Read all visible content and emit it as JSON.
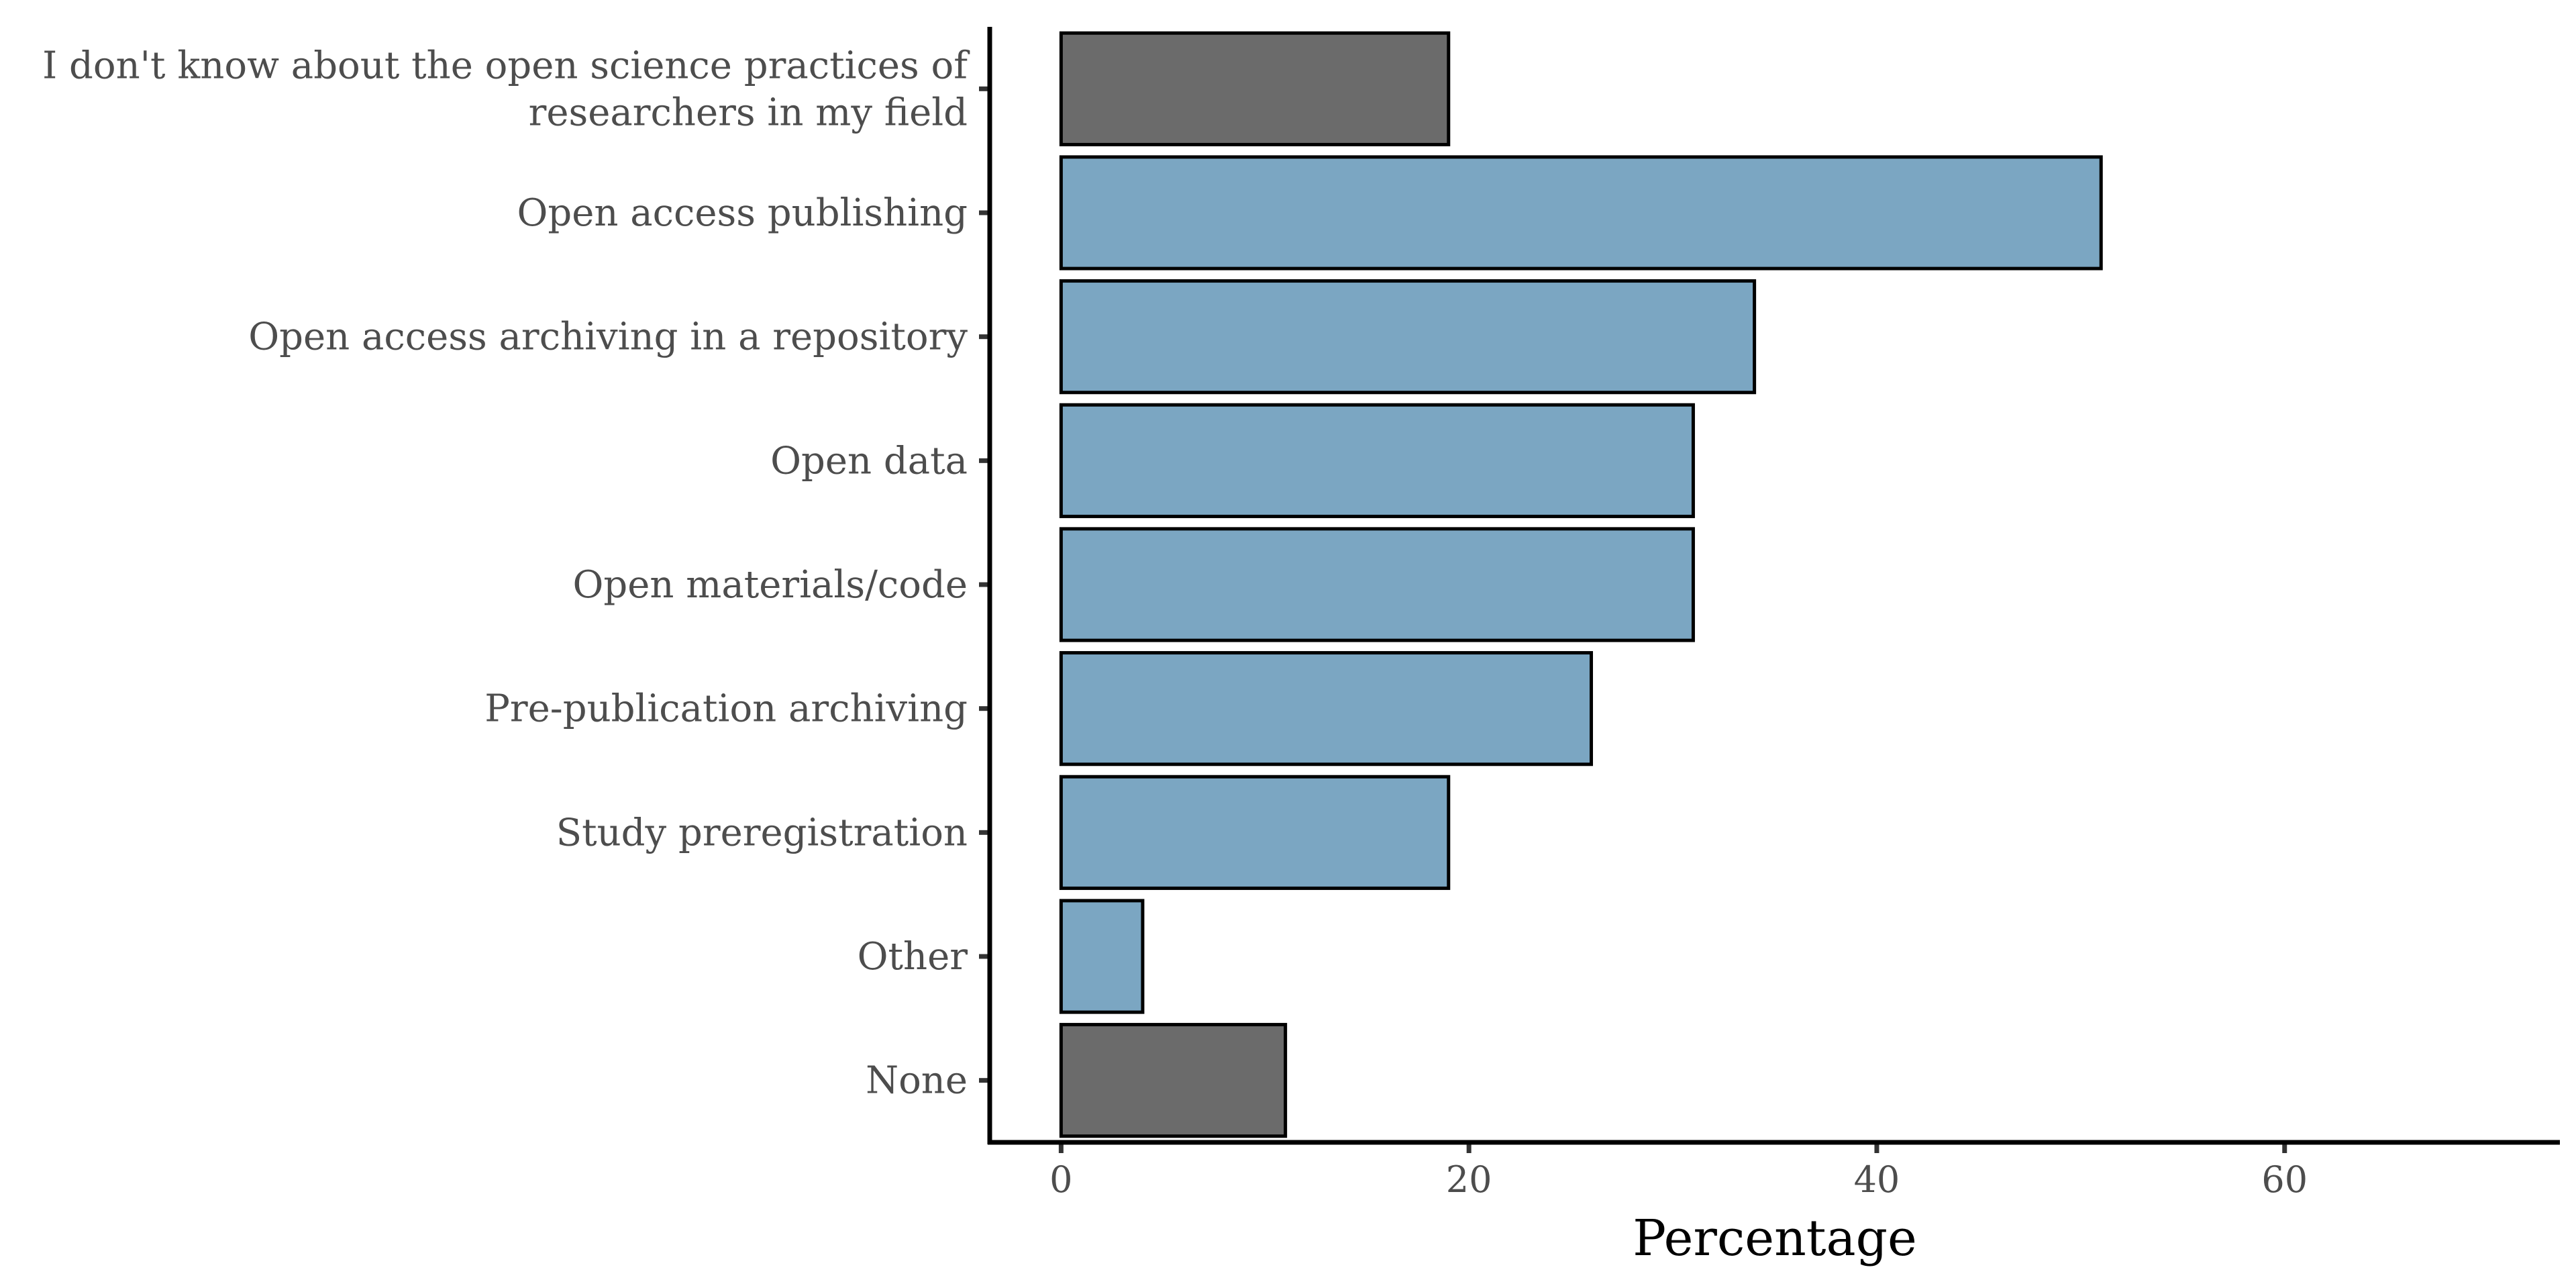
{
  "chart_data": {
    "type": "bar",
    "orientation": "horizontal",
    "categories": [
      [
        "I don't know about the open science practices of",
        "researchers in my field"
      ],
      [
        "Open access publishing"
      ],
      [
        "Open access archiving in a repository"
      ],
      [
        "Open data"
      ],
      [
        "Open materials/code"
      ],
      [
        "Pre-publication archiving"
      ],
      [
        "Study preregistration"
      ],
      [
        "Other"
      ],
      [
        "None"
      ]
    ],
    "values": [
      19,
      51,
      34,
      31,
      31,
      26,
      19,
      4,
      11
    ],
    "bar_colors": [
      "#6b6b6b",
      "#7ba6c2",
      "#7ba6c2",
      "#7ba6c2",
      "#7ba6c2",
      "#7ba6c2",
      "#7ba6c2",
      "#7ba6c2",
      "#6b6b6b"
    ],
    "xlabel": "Percentage",
    "ylabel": "",
    "title": "",
    "xlim": [
      -3.5,
      73.5
    ],
    "xticks": [
      0,
      20,
      40,
      60
    ],
    "grid": false,
    "legend": "none"
  }
}
